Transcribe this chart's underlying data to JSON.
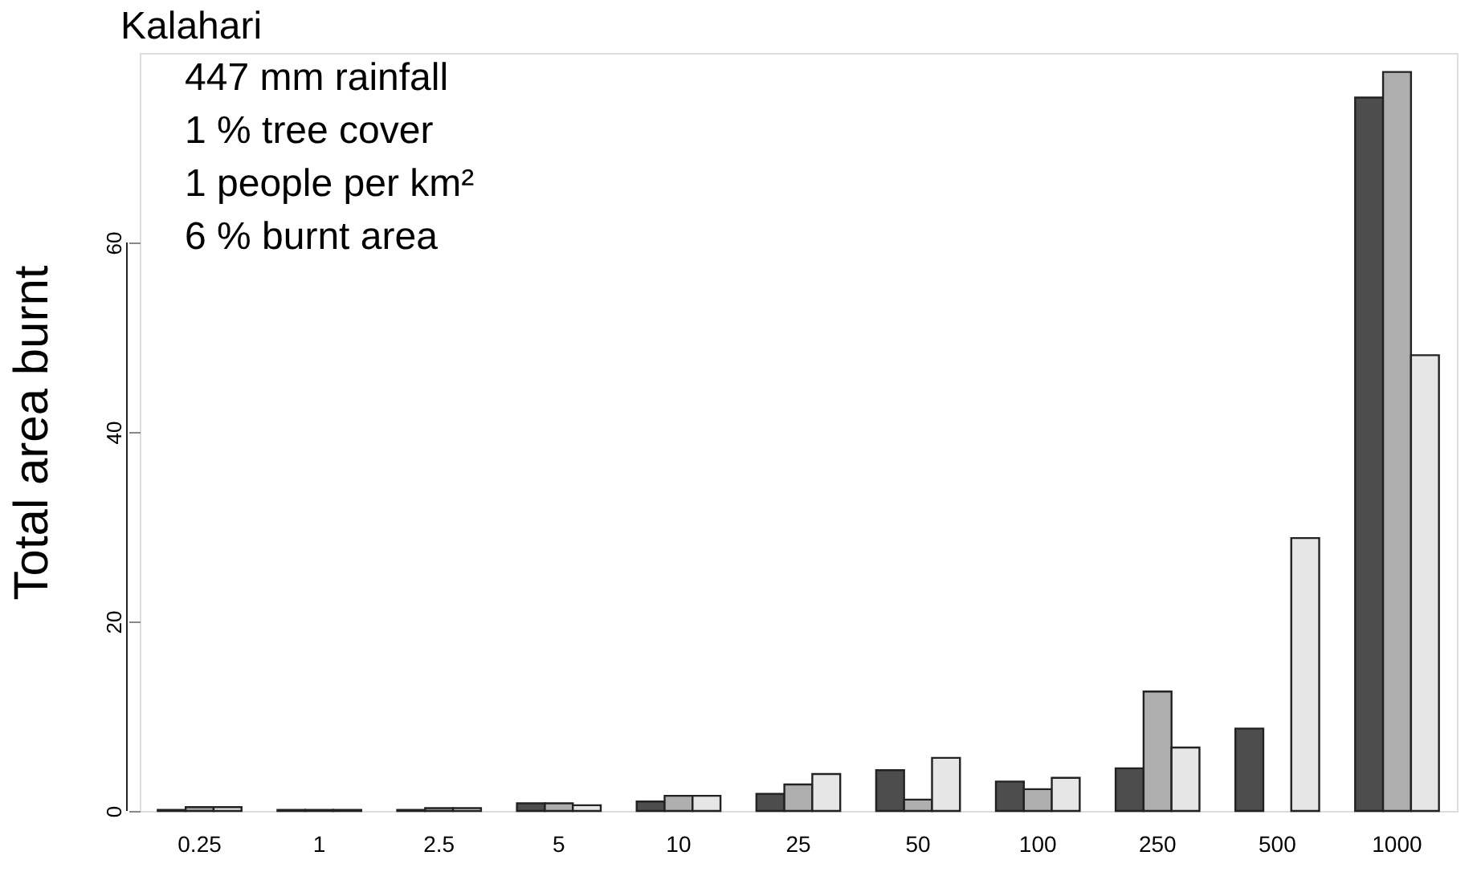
{
  "chart_data": {
    "type": "bar",
    "title": "Kalahari",
    "ylabel": "Total area burnt",
    "annotations": [
      "447 mm rainfall",
      "1 % tree cover",
      "1 people per km²",
      "6 % burnt area"
    ],
    "categories": [
      "0.25",
      "1",
      "2.5",
      "5",
      "10",
      "25",
      "50",
      "100",
      "250",
      "500",
      "1000"
    ],
    "series": [
      {
        "color": "#4d4d4d",
        "values": [
          0.1,
          0.1,
          0.1,
          0.8,
          1.0,
          1.8,
          4.3,
          3.1,
          4.5,
          8.7,
          75.3
        ]
      },
      {
        "color": "#aeaeae",
        "values": [
          0.4,
          0.1,
          0.3,
          0.8,
          1.6,
          2.8,
          1.2,
          2.3,
          12.6,
          null,
          78.0
        ]
      },
      {
        "color": "#e6e6e6",
        "values": [
          0.4,
          0.1,
          0.3,
          0.6,
          1.6,
          3.9,
          5.6,
          3.5,
          6.7,
          28.8,
          48.1
        ]
      }
    ],
    "ylim": [
      0,
      80
    ],
    "yticks": [
      0,
      20,
      40,
      60
    ],
    "grid": false,
    "legend": false
  }
}
